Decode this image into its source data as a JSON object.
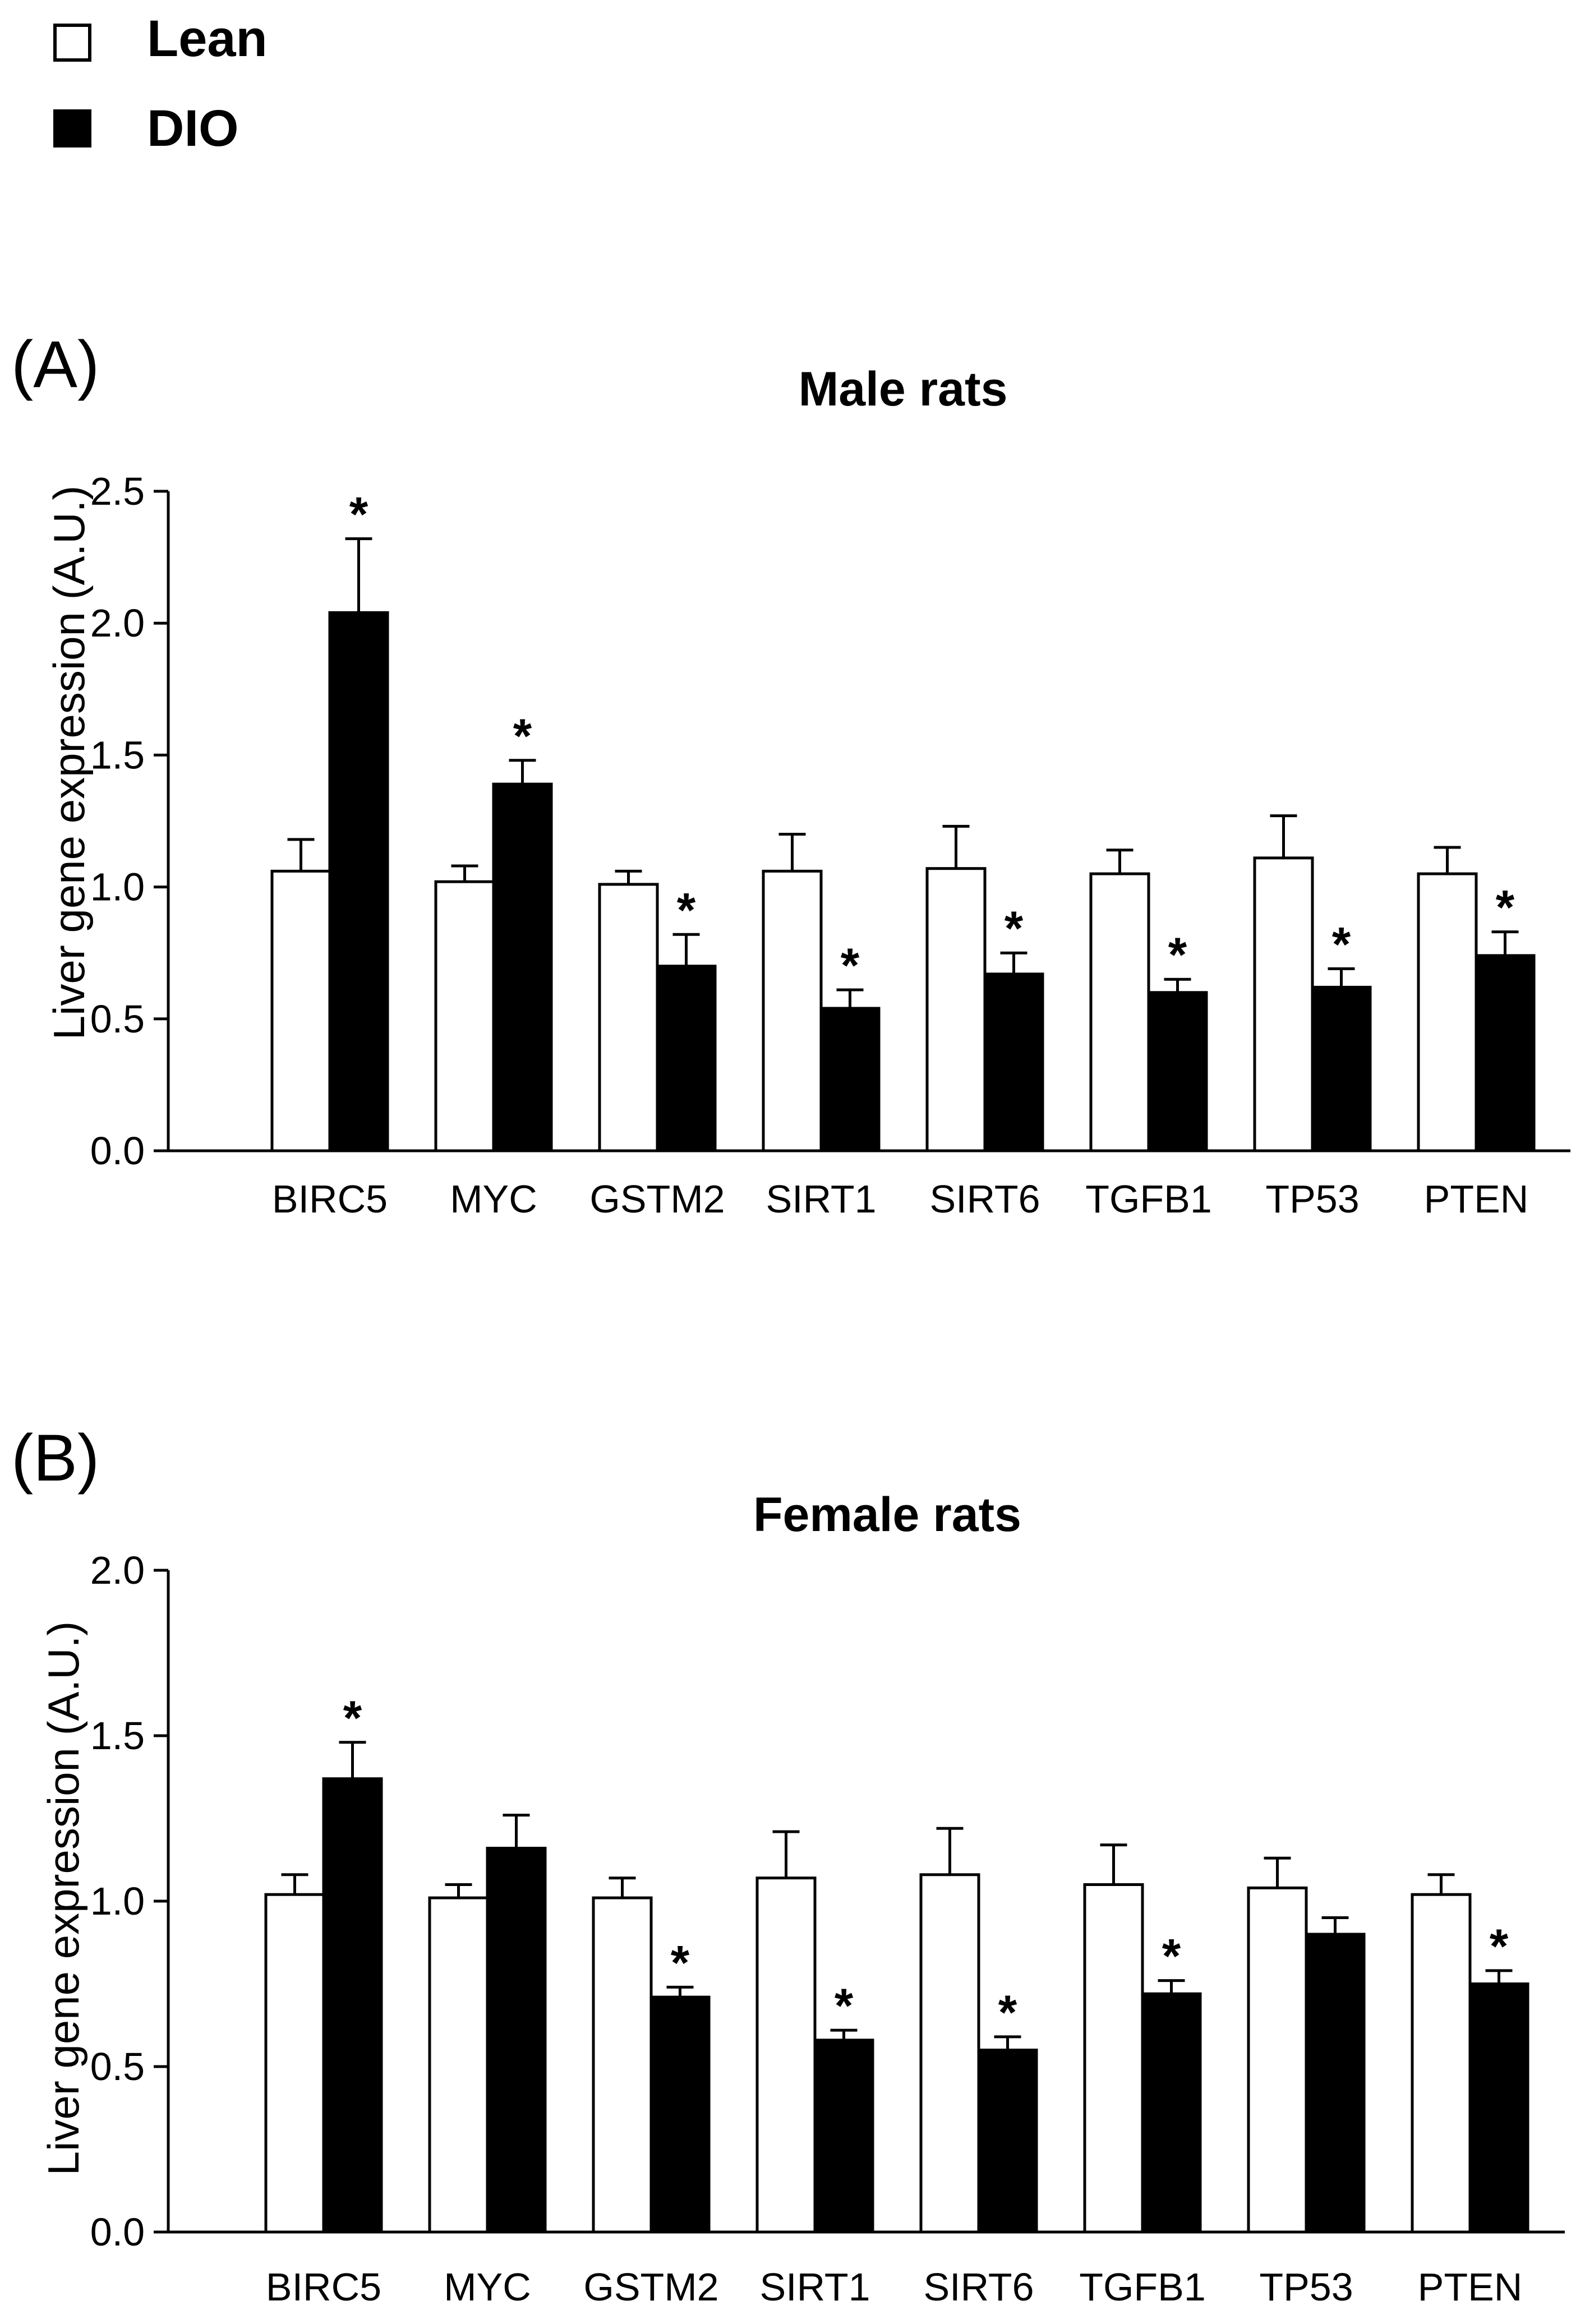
{
  "legend": [
    {
      "label": "Lean",
      "fill": "#ffffff"
    },
    {
      "label": "DIO",
      "fill": "#000000"
    }
  ],
  "colors": {
    "lean": "#ffffff",
    "dio": "#000000",
    "stroke": "#000000"
  },
  "chart_data": [
    {
      "type": "bar",
      "panel_label": "(A)",
      "title": "Male rats",
      "ylabel": "Liver gene expression (A.U.)",
      "xlabel": "",
      "ylim": [
        0,
        2.5
      ],
      "yticks": [
        "0.0",
        "0.5",
        "1.0",
        "1.5",
        "2.0",
        "2.5"
      ],
      "categories": [
        "BIRC5",
        "MYC",
        "GSTM2",
        "SIRT1",
        "SIRT6",
        "TGFB1",
        "TP53",
        "PTEN"
      ],
      "series": [
        {
          "name": "Lean",
          "values": [
            1.06,
            1.02,
            1.01,
            1.06,
            1.07,
            1.05,
            1.11,
            1.05
          ],
          "errors": [
            0.12,
            0.06,
            0.05,
            0.14,
            0.16,
            0.09,
            0.16,
            0.1
          ]
        },
        {
          "name": "DIO",
          "values": [
            2.04,
            1.39,
            0.7,
            0.54,
            0.67,
            0.6,
            0.62,
            0.74
          ],
          "errors": [
            0.28,
            0.09,
            0.12,
            0.07,
            0.08,
            0.05,
            0.07,
            0.09
          ]
        }
      ],
      "significance": [
        "*",
        "*",
        "*",
        "*",
        "*",
        "*",
        "*",
        "*"
      ]
    },
    {
      "type": "bar",
      "panel_label": "(B)",
      "title": "Female rats",
      "ylabel": "Liver gene expression (A.U.)",
      "xlabel": "",
      "ylim": [
        0,
        2.0
      ],
      "yticks": [
        "0.0",
        "0.5",
        "1.0",
        "1.5",
        "2.0"
      ],
      "categories": [
        "BIRC5",
        "MYC",
        "GSTM2",
        "SIRT1",
        "SIRT6",
        "TGFB1",
        "TP53",
        "PTEN"
      ],
      "series": [
        {
          "name": "Lean",
          "values": [
            1.02,
            1.01,
            1.01,
            1.07,
            1.08,
            1.05,
            1.04,
            1.02
          ],
          "errors": [
            0.06,
            0.04,
            0.06,
            0.14,
            0.14,
            0.12,
            0.09,
            0.06
          ]
        },
        {
          "name": "DIO",
          "values": [
            1.37,
            1.16,
            0.71,
            0.58,
            0.55,
            0.72,
            0.9,
            0.75
          ],
          "errors": [
            0.11,
            0.1,
            0.03,
            0.03,
            0.04,
            0.04,
            0.05,
            0.04
          ]
        }
      ],
      "significance": [
        "*",
        "",
        "*",
        "*",
        "*",
        "*",
        "",
        "*"
      ]
    }
  ]
}
